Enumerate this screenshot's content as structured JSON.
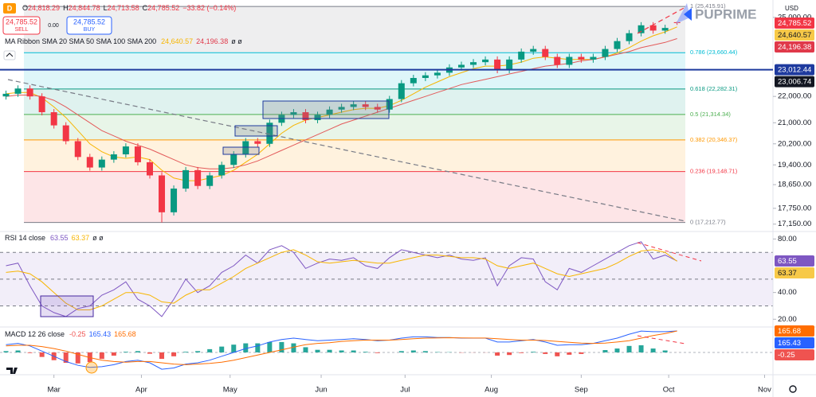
{
  "header": {
    "symbol_icon": "D",
    "ohlc": [
      "O",
      "24,818.29",
      "H",
      "24,844.78",
      "L",
      "24,713.58",
      "C",
      "24,785.52",
      "−33.82 (−0.14%)"
    ],
    "sell_price": "24,785.52",
    "sell": "SELL",
    "spread": "0.00",
    "buy_price": "24,785.52",
    "buy": "BUY",
    "currency": "USD",
    "logo": "PUPRIME",
    "overlay_extra": "ø ø"
  },
  "chart_data": [
    {
      "type": "candlestick",
      "indicator_label": "MA Ribbon SMA 20 SMA 50 SMA 100 SMA 200",
      "x": [
        0,
        1,
        2,
        3,
        4,
        5,
        6,
        7,
        8,
        9,
        10,
        11,
        12,
        13,
        14,
        15,
        16,
        17,
        18,
        19,
        20,
        21,
        22,
        23,
        24,
        25,
        26,
        27,
        28,
        29,
        30,
        31,
        32,
        33,
        34,
        35,
        36,
        37,
        38,
        39,
        40,
        41,
        42,
        43,
        44,
        45,
        46,
        47,
        48,
        49,
        50,
        51,
        52,
        53,
        54,
        55,
        56
      ],
      "open": [
        22000,
        22100,
        22300,
        22000,
        21400,
        20900,
        20300,
        19700,
        19300,
        19600,
        19800,
        20100,
        19500,
        19000,
        17600,
        18500,
        19200,
        18600,
        19000,
        19400,
        19800,
        20300,
        20200,
        21000,
        21300,
        21400,
        21100,
        21300,
        21500,
        21600,
        21700,
        21600,
        21500,
        21900,
        22500,
        22700,
        22800,
        22900,
        23100,
        23200,
        23300,
        23400,
        23000,
        23400,
        23700,
        23800,
        23500,
        23200,
        23500,
        23400,
        23500,
        23800,
        24100,
        24400,
        24700,
        24500,
        24818.29
      ],
      "high": [
        22220,
        22420,
        22420,
        22120,
        21520,
        21020,
        20420,
        19820,
        19720,
        19920,
        20220,
        20220,
        19620,
        19120,
        18620,
        19320,
        19320,
        19120,
        19520,
        19920,
        20420,
        20420,
        21120,
        21420,
        21520,
        21520,
        21420,
        21620,
        21720,
        21820,
        21820,
        21720,
        22020,
        22620,
        22820,
        22920,
        23020,
        23220,
        23320,
        23420,
        23520,
        23520,
        23520,
        23820,
        23920,
        23920,
        23620,
        23620,
        23620,
        23620,
        23920,
        24220,
        24520,
        24820,
        24820,
        24720,
        24844.78
      ],
      "low": [
        21880,
        21980,
        21880,
        21280,
        20780,
        20180,
        19580,
        19180,
        19180,
        19480,
        19680,
        19380,
        18880,
        17213,
        17480,
        18380,
        18480,
        18480,
        18880,
        19280,
        19680,
        20080,
        20080,
        20880,
        21180,
        20980,
        20980,
        21180,
        21380,
        21480,
        21480,
        21380,
        21380,
        21780,
        22380,
        22580,
        22680,
        22780,
        22980,
        23080,
        23180,
        22880,
        22880,
        23280,
        23580,
        23380,
        23080,
        23080,
        23280,
        23280,
        23380,
        23680,
        23980,
        24280,
        24380,
        24380,
        24713.58
      ],
      "close": [
        22100,
        22300,
        22000,
        21400,
        20900,
        20300,
        19700,
        19300,
        19600,
        19800,
        20100,
        19500,
        19000,
        17600,
        18500,
        19200,
        18600,
        19000,
        19400,
        19800,
        20300,
        20200,
        21000,
        21300,
        21400,
        21100,
        21300,
        21500,
        21600,
        21700,
        21600,
        21500,
        21900,
        22500,
        22700,
        22800,
        22900,
        23100,
        23200,
        23300,
        23400,
        23000,
        23400,
        23700,
        23800,
        23500,
        23200,
        23500,
        23400,
        23500,
        23800,
        24100,
        24400,
        24700,
        24500,
        24600,
        24785.52
      ],
      "up_color": "#089981",
      "down_color": "#f23645",
      "overlays": [
        {
          "color": "#f7b500",
          "values": [
            22100,
            22150,
            22150,
            21950,
            21600,
            21200,
            20700,
            20200,
            19900,
            19700,
            19650,
            19700,
            19600,
            19200,
            18900,
            18800,
            18800,
            18900,
            19000,
            19200,
            19500,
            19800,
            20200,
            20600,
            20900,
            21100,
            21200,
            21300,
            21400,
            21500,
            21550,
            21550,
            21650,
            21850,
            22100,
            22350,
            22550,
            22750,
            22900,
            23050,
            23150,
            23150,
            23200,
            23300,
            23450,
            23500,
            23450,
            23400,
            23400,
            23400,
            23500,
            23650,
            23850,
            24100,
            24300,
            24450,
            24640.57
          ]
        },
        {
          "color": "#e35a5a",
          "values": [
            22000,
            22050,
            22050,
            22000,
            21850,
            21600,
            21300,
            21000,
            20700,
            20500,
            20300,
            20150,
            20000,
            19800,
            19600,
            19400,
            19300,
            19250,
            19250,
            19300,
            19400,
            19550,
            19750,
            19950,
            20150,
            20350,
            20550,
            20750,
            20950,
            21100,
            21250,
            21400,
            21550,
            21700,
            21850,
            22000,
            22150,
            22300,
            22450,
            22550,
            22650,
            22750,
            22850,
            22950,
            23050,
            23150,
            23200,
            23250,
            23350,
            23400,
            23500,
            23600,
            23700,
            23850,
            23950,
            24050,
            24196.38
          ]
        }
      ],
      "fib_levels": [
        {
          "value": 25415.91,
          "label": "1 (25,415.91)",
          "color": "#787b86"
        },
        {
          "value": 23660.44,
          "label": "0.786 (23,660.44)",
          "color": "#00bcd4"
        },
        {
          "value": 22282.31,
          "label": "0.618 (22,282.31)",
          "color": "#089981"
        },
        {
          "value": 21314.34,
          "label": "0.5 (21,314.34)",
          "color": "#4caf50"
        },
        {
          "value": 20346.37,
          "label": "0.382 (20,346.37)",
          "color": "#ff9800"
        },
        {
          "value": 19148.71,
          "label": "0.236 (19,148.71)",
          "color": "#f23645"
        },
        {
          "value": 17212.77,
          "label": "0 (17,212.77)",
          "color": "#787b86"
        }
      ],
      "price_tags": [
        {
          "value": 24785.52,
          "label": "24,785.52",
          "color": "#f23645"
        },
        {
          "value": 24640.57,
          "label": "24,640.57",
          "color": "#f7c948"
        },
        {
          "value": 24196.38,
          "label": "24,196.38",
          "color": "#e0394a"
        },
        {
          "value": 23012.44,
          "label": "23,012.44",
          "color": "#1e3a9e",
          "line": true
        },
        {
          "value": 23006.74,
          "label": "23,006.74",
          "color": "#131722"
        }
      ],
      "xlim": [
        -0.5,
        64
      ],
      "xticks": [
        {
          "value": 4,
          "label": "Mar"
        },
        {
          "value": 11.3,
          "label": "Apr"
        },
        {
          "value": 18.7,
          "label": "May"
        },
        {
          "value": 26.3,
          "label": "Jun"
        },
        {
          "value": 33.3,
          "label": "Jul"
        },
        {
          "value": 40.5,
          "label": "Aug"
        },
        {
          "value": 48,
          "label": "Sep"
        },
        {
          "value": 55.3,
          "label": "Oct"
        },
        {
          "value": 63.3,
          "label": "Nov"
        }
      ],
      "ylim": [
        16900,
        25540
      ],
      "yticks": [
        {
          "value": 25000,
          "label": "25,000.00"
        },
        {
          "value": 22000,
          "label": "22,000.00"
        },
        {
          "value": 21000,
          "label": "21,000.00"
        },
        {
          "value": 20200,
          "label": "20,200.00"
        },
        {
          "value": 19400,
          "label": "19,400.00"
        },
        {
          "value": 18650,
          "label": "18,650.00"
        },
        {
          "value": 17750,
          "label": "17,750.00"
        },
        {
          "value": 17150,
          "label": "17,150.00"
        }
      ]
    },
    {
      "type": "line",
      "indicator_label": "RSI 14 close",
      "extra": "ø ø",
      "series": [
        {
          "color": "#7e57c2",
          "values": [
            60,
            62,
            45,
            30,
            25,
            22,
            28,
            30,
            38,
            42,
            48,
            35,
            30,
            22,
            35,
            50,
            40,
            45,
            55,
            60,
            68,
            62,
            72,
            75,
            70,
            58,
            62,
            65,
            64,
            66,
            60,
            58,
            66,
            72,
            70,
            68,
            66,
            68,
            65,
            64,
            66,
            45,
            60,
            66,
            65,
            48,
            42,
            58,
            55,
            60,
            65,
            70,
            75,
            78,
            65,
            68,
            63.55
          ]
        },
        {
          "color": "#f7b500",
          "values": [
            55,
            56,
            54,
            48,
            40,
            32,
            27,
            27,
            30,
            35,
            40,
            40,
            38,
            33,
            32,
            38,
            42,
            42,
            47,
            52,
            58,
            62,
            66,
            70,
            72,
            68,
            63,
            62,
            63,
            64,
            63,
            62,
            62,
            64,
            66,
            68,
            68,
            67,
            66,
            66,
            65,
            60,
            58,
            60,
            62,
            58,
            54,
            52,
            54,
            56,
            58,
            62,
            67,
            71,
            72,
            70,
            63.37
          ]
        }
      ],
      "bands": [
        70,
        50,
        30
      ],
      "band_color": "#7e57c2",
      "price_tags": [
        {
          "value": 63.55,
          "label": "63.55",
          "color": "#7e57c2"
        },
        {
          "value": 63.37,
          "label": "63.37",
          "color": "#f7c948"
        }
      ],
      "ylim": [
        16,
        85
      ],
      "yticks": [
        {
          "value": 80,
          "label": "80.00"
        },
        {
          "value": 40,
          "label": "40.00"
        },
        {
          "value": 20,
          "label": "20.00"
        }
      ]
    },
    {
      "type": "macd",
      "indicator_label": "MACD 12 26 close",
      "histogram": [
        10,
        15,
        -5,
        -35,
        -60,
        -80,
        -85,
        -75,
        -50,
        -25,
        5,
        10,
        -10,
        -50,
        -30,
        5,
        10,
        25,
        45,
        60,
        70,
        70,
        80,
        80,
        70,
        40,
        20,
        20,
        15,
        15,
        5,
        -5,
        0,
        10,
        15,
        10,
        3,
        2,
        -2,
        -1,
        -1,
        -25,
        -20,
        -5,
        5,
        -12,
        -30,
        -18,
        -12,
        0,
        18,
        30,
        50,
        55,
        30,
        15,
        -0.25
      ],
      "up_color": "#26a69a",
      "down_color": "#ef5350",
      "series": [
        {
          "color": "#2962ff",
          "values": [
            60,
            70,
            50,
            10,
            -30,
            -70,
            -100,
            -115,
            -110,
            -95,
            -70,
            -60,
            -80,
            -130,
            -120,
            -90,
            -80,
            -60,
            -30,
            0,
            30,
            50,
            80,
            100,
            110,
            100,
            90,
            95,
            100,
            105,
            100,
            90,
            95,
            110,
            120,
            120,
            115,
            115,
            110,
            110,
            110,
            80,
            80,
            90,
            100,
            80,
            55,
            60,
            60,
            70,
            90,
            110,
            140,
            165,
            160,
            160,
            165.43
          ]
        },
        {
          "color": "#ff6d00",
          "values": [
            50,
            55,
            55,
            45,
            30,
            10,
            -15,
            -40,
            -60,
            -70,
            -75,
            -70,
            -70,
            -80,
            -90,
            -95,
            -90,
            -85,
            -75,
            -60,
            -40,
            -20,
            0,
            20,
            40,
            60,
            70,
            75,
            85,
            90,
            95,
            95,
            95,
            100,
            105,
            110,
            112,
            113,
            112,
            111,
            111,
            105,
            100,
            95,
            95,
            92,
            85,
            78,
            72,
            70,
            72,
            80,
            90,
            110,
            130,
            145,
            165.68
          ]
        }
      ],
      "price_tags": [
        {
          "value": 165.68,
          "label": "165.68",
          "color": "#ff6d00"
        },
        {
          "value": 165.43,
          "label": "165.43",
          "color": "#2962ff"
        },
        {
          "value": -0.25,
          "label": "-0.25",
          "color": "#ef5350"
        }
      ],
      "ylim": [
        -166,
        190
      ]
    }
  ]
}
